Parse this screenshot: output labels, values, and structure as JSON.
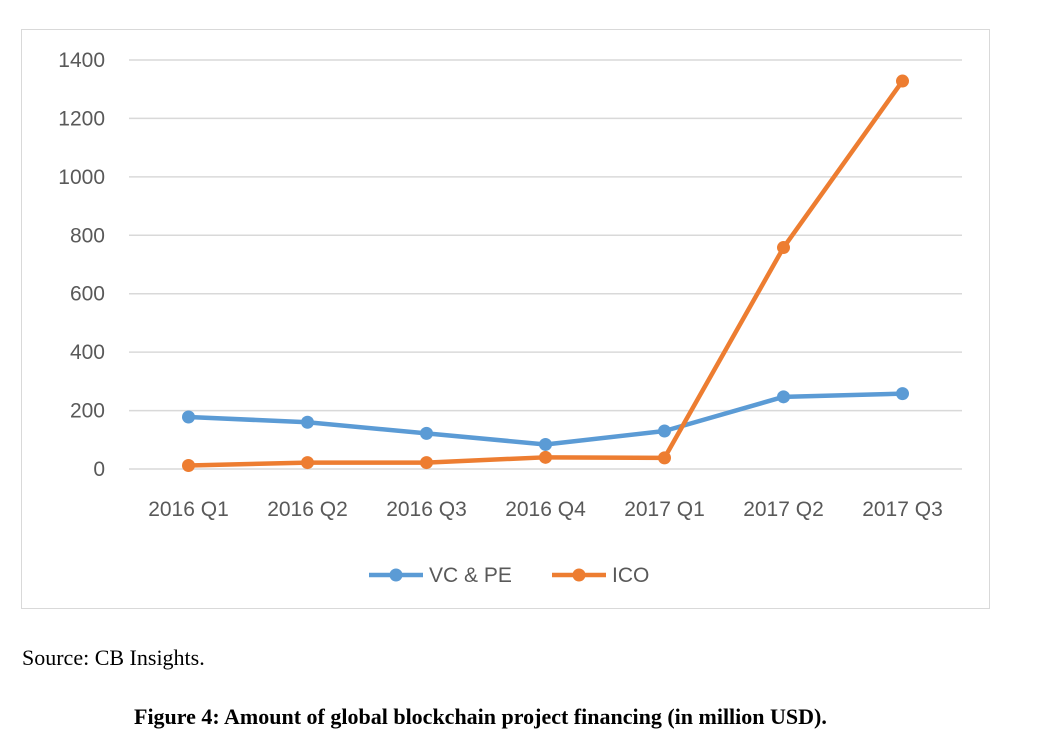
{
  "chart_data": {
    "type": "line",
    "categories": [
      "2016 Q1",
      "2016 Q2",
      "2016 Q3",
      "2016 Q4",
      "2017 Q1",
      "2017 Q2",
      "2017 Q3"
    ],
    "series": [
      {
        "name": "VC & PE",
        "color": "#5b9bd5",
        "values": [
          178,
          160,
          122,
          84,
          130,
          247,
          258
        ]
      },
      {
        "name": "ICO",
        "color": "#ed7d31",
        "values": [
          12,
          22,
          22,
          40,
          38,
          758,
          1328
        ]
      }
    ],
    "ylim": [
      0,
      1400
    ],
    "yticks": [
      0,
      200,
      400,
      600,
      800,
      1000,
      1200,
      1400
    ],
    "grid": true,
    "legend": "bottom",
    "title": "",
    "xlabel": "",
    "ylabel": ""
  },
  "source": "Source: CB Insights.",
  "caption": "Figure 4: Amount of global blockchain project financing (in million USD)."
}
